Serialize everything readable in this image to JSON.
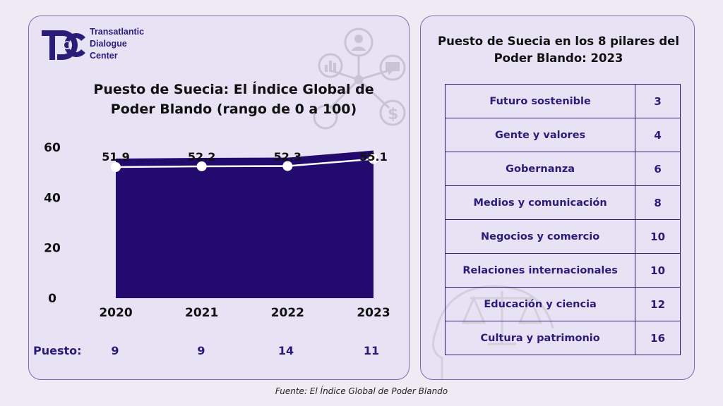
{
  "logo": {
    "line1": "Transatlantic",
    "line2": "Dialogue",
    "line3": "Center"
  },
  "chart_data": {
    "type": "area",
    "title": "Puesto de Suecia: El Índice Global de Poder Blando (rango de 0 a 100)",
    "categories": [
      "2020",
      "2021",
      "2022",
      "2023"
    ],
    "series": [
      {
        "values": [
          51.9,
          52.2,
          52.3,
          55.1
        ]
      }
    ],
    "value_labels": [
      "51.9",
      "52.2",
      "52.3",
      "55.1"
    ],
    "yticks": [
      "0",
      "20",
      "40",
      "60"
    ],
    "ylim": [
      0,
      60
    ],
    "grid": false,
    "colors": {
      "area": "#230a6e",
      "line": "#ffffff"
    },
    "rank_label": "Puesto:",
    "ranks": [
      "9",
      "9",
      "14",
      "11"
    ]
  },
  "pillars": {
    "title": "Puesto de Suecia en los 8 pilares del Poder Blando: 2023",
    "rows": [
      {
        "name": "Futuro sostenible",
        "rank": "3"
      },
      {
        "name": "Gente y valores",
        "rank": "4"
      },
      {
        "name": "Gobernanza",
        "rank": "6"
      },
      {
        "name": "Medios y comunicación",
        "rank": "8"
      },
      {
        "name": "Negocios y comercio",
        "rank": "10"
      },
      {
        "name": "Relaciones internacionales",
        "rank": "10"
      },
      {
        "name": "Educación y ciencia",
        "rank": "12"
      },
      {
        "name": "Cultura y patrimonio",
        "rank": "16"
      }
    ]
  },
  "source": "Fuente: El Índice Global de Poder Blando"
}
